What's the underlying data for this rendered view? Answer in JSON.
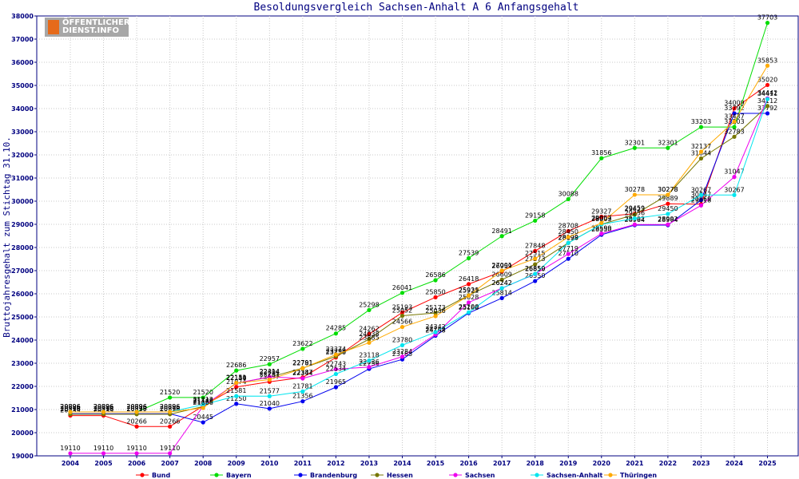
{
  "chart_data": {
    "type": "line",
    "title": "Besoldungsvergleich Sachsen-Anhalt A 6 Anfangsgehalt",
    "ylabel": "Bruttojahresgehalt zum Stichtag 31.10.",
    "xlabel": "",
    "ylim": [
      19000,
      38000
    ],
    "yticks": [
      19000,
      20000,
      21000,
      22000,
      23000,
      24000,
      25000,
      26000,
      27000,
      28000,
      29000,
      30000,
      31000,
      32000,
      33000,
      34000,
      35000,
      36000,
      37000,
      38000
    ],
    "categories": [
      "2004",
      "2005",
      "2006",
      "2007",
      "2008",
      "2009",
      "2010",
      "2011",
      "2012",
      "2013",
      "2014",
      "2015",
      "2016",
      "2017",
      "2018",
      "2019",
      "2020",
      "2021",
      "2022",
      "2023",
      "2024",
      "2025"
    ],
    "legend_position": "bottom",
    "series": [
      {
        "name": "Bund",
        "color": "#ff0000",
        "values": [
          20739,
          20739,
          20266,
          20266,
          21149,
          21974,
          22197,
          22387,
          23250,
          24262,
          25193,
          25850,
          26418,
          26959,
          27848,
          28708,
          29327,
          29459,
          29889,
          29869,
          34009,
          35020
        ]
      },
      {
        "name": "Bayern",
        "color": "#00dd00",
        "values": [
          20896,
          20896,
          20896,
          21520,
          21520,
          22686,
          22957,
          23622,
          24285,
          25298,
          26041,
          26586,
          27539,
          28491,
          29158,
          30088,
          31856,
          32301,
          32301,
          33203,
          33203,
          37703
        ]
      },
      {
        "name": "Brandenburg",
        "color": "#0000ee",
        "values": [
          20818,
          20818,
          20818,
          20818,
          20445,
          21250,
          21040,
          21356,
          21965,
          22756,
          23165,
          24188,
          25168,
          25814,
          26550,
          27510,
          28550,
          28964,
          28964,
          30047,
          33792,
          33792
        ]
      },
      {
        "name": "Hessen",
        "color": "#777700",
        "values": [
          20799,
          20799,
          20799,
          20799,
          21129,
          22140,
          22394,
          22791,
          23298,
          24038,
          25052,
          25173,
          25939,
          26609,
          27273,
          28199,
          29003,
          29423,
          30278,
          31844,
          32783,
          34112
        ]
      },
      {
        "name": "Sachsen",
        "color": "#ee00ee",
        "values": [
          19110,
          19110,
          19110,
          19110,
          21149,
          22134,
          22414,
          22344,
          22743,
          22836,
          23284,
          24242,
          25628,
          26242,
          26850,
          27719,
          28599,
          28992,
          28992,
          29818,
          31047,
          34442
        ]
      },
      {
        "name": "Sachsen-Anhalt",
        "color": "#00e5ee",
        "values": [
          20896,
          20896,
          20896,
          20896,
          21212,
          21581,
          21577,
          21781,
          22534,
          23118,
          23780,
          24342,
          25200,
          26242,
          26859,
          28198,
          28999,
          29256,
          29450,
          30267,
          30267,
          34411
        ]
      },
      {
        "name": "Thüringen",
        "color": "#ffaa00",
        "values": [
          20896,
          20896,
          20896,
          20896,
          21068,
          22151,
          22291,
          22781,
          23374,
          23885,
          24566,
          25036,
          25921,
          27001,
          27515,
          28450,
          29057,
          30278,
          30278,
          32137,
          33437,
          35853
        ]
      }
    ]
  }
}
